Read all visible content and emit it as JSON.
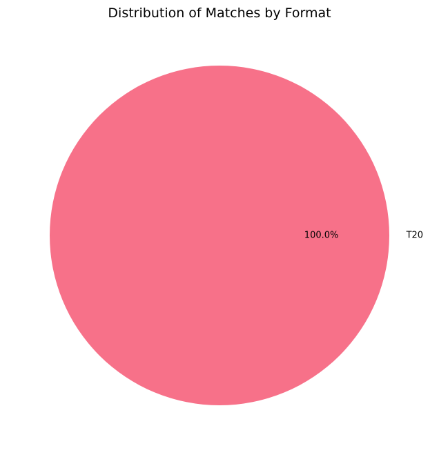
{
  "chart_data": {
    "type": "pie",
    "title": "Distribution of Matches by Format",
    "slices": [
      {
        "label": "T20",
        "value": 100.0,
        "pct_label": "100.0%",
        "color": "#f77189"
      }
    ]
  }
}
